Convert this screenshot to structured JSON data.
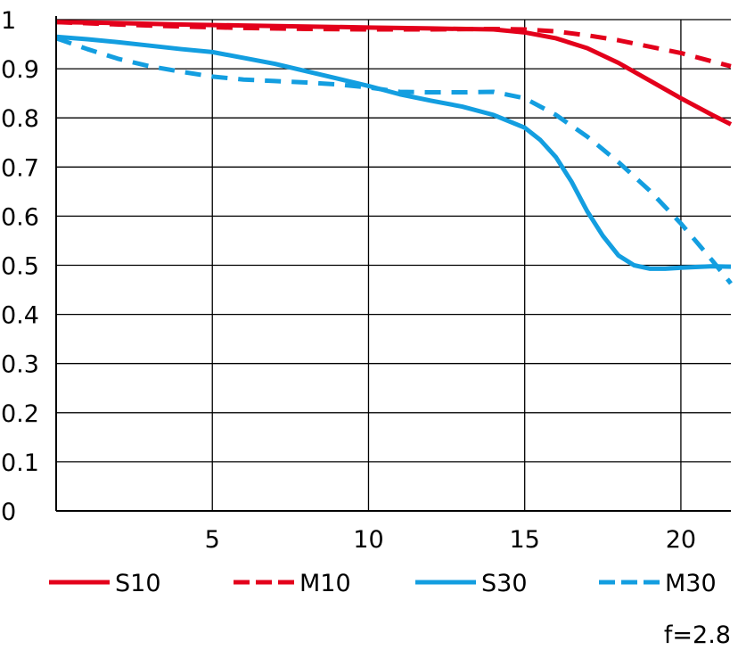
{
  "chart_data": {
    "type": "line",
    "title": "",
    "xlabel": "",
    "ylabel": "",
    "xlim": [
      0,
      21.6
    ],
    "ylim": [
      0,
      1
    ],
    "x_ticks": [
      5,
      10,
      15,
      20
    ],
    "y_ticks": [
      0,
      0.1,
      0.2,
      0.3,
      0.4,
      0.5,
      0.6,
      0.7,
      0.8,
      0.9,
      1
    ],
    "y_tick_labels": [
      "0",
      "0.1",
      "0.2",
      "0.3",
      "0.4",
      "0.5",
      "0.6",
      "0.7",
      "0.8",
      "0.9",
      "1"
    ],
    "grid": true,
    "legend_position": "bottom",
    "annotation": "f=2.8",
    "series": [
      {
        "name": "S10",
        "color": "#e3001b",
        "dash": "solid",
        "x": [
          0,
          2,
          4,
          6,
          8,
          10,
          12,
          14,
          15,
          16,
          17,
          18,
          19,
          20,
          21,
          21.6
        ],
        "y": [
          0.995,
          0.993,
          0.99,
          0.988,
          0.986,
          0.984,
          0.982,
          0.98,
          0.974,
          0.962,
          0.942,
          0.912,
          0.876,
          0.84,
          0.806,
          0.787
        ]
      },
      {
        "name": "M10",
        "color": "#e3001b",
        "dash": "dashed",
        "x": [
          0,
          2,
          4,
          6,
          8,
          10,
          12,
          14,
          15,
          16,
          17,
          18,
          19,
          20,
          21,
          21.6
        ],
        "y": [
          0.995,
          0.99,
          0.986,
          0.983,
          0.981,
          0.98,
          0.98,
          0.981,
          0.98,
          0.976,
          0.968,
          0.958,
          0.945,
          0.932,
          0.915,
          0.905
        ]
      },
      {
        "name": "S30",
        "color": "#139ee0",
        "dash": "solid",
        "x": [
          0,
          1,
          2,
          3,
          4,
          5,
          6,
          7,
          8,
          9,
          10,
          11,
          12,
          13,
          14,
          15,
          15.5,
          16,
          16.5,
          17,
          17.5,
          18,
          18.5,
          19,
          19.5,
          20,
          21,
          21.6
        ],
        "y": [
          0.965,
          0.96,
          0.954,
          0.947,
          0.94,
          0.934,
          0.922,
          0.91,
          0.895,
          0.88,
          0.865,
          0.848,
          0.835,
          0.823,
          0.806,
          0.78,
          0.755,
          0.72,
          0.67,
          0.61,
          0.56,
          0.52,
          0.5,
          0.493,
          0.493,
          0.495,
          0.498,
          0.497
        ]
      },
      {
        "name": "M30",
        "color": "#139ee0",
        "dash": "dashed",
        "x": [
          0,
          1,
          2,
          3,
          4,
          5,
          6,
          7,
          8,
          9,
          10,
          11,
          12,
          13,
          14,
          15,
          16,
          17,
          18,
          19,
          20,
          21,
          21.6
        ],
        "y": [
          0.962,
          0.94,
          0.92,
          0.905,
          0.894,
          0.884,
          0.878,
          0.875,
          0.872,
          0.868,
          0.862,
          0.853,
          0.852,
          0.852,
          0.853,
          0.84,
          0.806,
          0.762,
          0.71,
          0.652,
          0.585,
          0.51,
          0.463
        ]
      }
    ]
  }
}
